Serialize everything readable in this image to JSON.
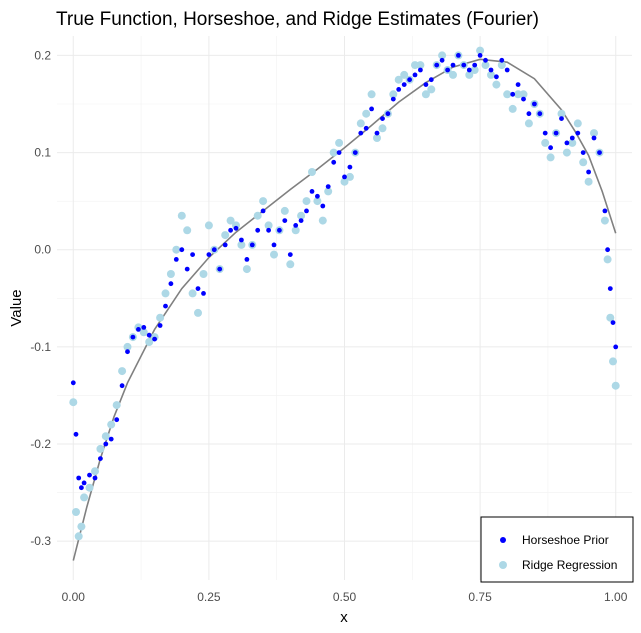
{
  "chart_data": {
    "type": "scatter",
    "title": "True Function, Horseshoe, and Ridge Estimates (Fourier)",
    "xlabel": "x",
    "ylabel": "Value",
    "xlim": [
      -0.03,
      1.03
    ],
    "ylim": [
      -0.34,
      0.22
    ],
    "x_ticks": [
      0.0,
      0.25,
      0.5,
      0.75,
      1.0
    ],
    "x_tick_labels": [
      "0.00",
      "0.25",
      "0.50",
      "0.75",
      "1.00"
    ],
    "y_ticks": [
      -0.3,
      -0.2,
      -0.1,
      0.0,
      0.1,
      0.2
    ],
    "y_tick_labels": [
      "-0.3",
      "-0.2",
      "-0.1",
      "0.0",
      "0.1",
      "0.2"
    ],
    "grid": true,
    "legend_position": "bottom-right",
    "true_function": {
      "color": "#808080",
      "x": [
        0.0,
        0.025,
        0.05,
        0.075,
        0.1,
        0.15,
        0.2,
        0.25,
        0.3,
        0.35,
        0.4,
        0.45,
        0.5,
        0.55,
        0.6,
        0.65,
        0.7,
        0.75,
        0.8,
        0.85,
        0.9,
        0.925,
        0.95,
        0.975,
        1.0
      ],
      "y": [
        -0.32,
        -0.265,
        -0.215,
        -0.172,
        -0.137,
        -0.082,
        -0.04,
        -0.008,
        0.018,
        0.04,
        0.062,
        0.083,
        0.105,
        0.128,
        0.152,
        0.172,
        0.188,
        0.196,
        0.193,
        0.176,
        0.144,
        0.122,
        0.097,
        0.06,
        0.017
      ]
    },
    "series": [
      {
        "name": "Horseshoe Prior",
        "color": "#0000ff",
        "x": [
          0.0,
          0.005,
          0.01,
          0.015,
          0.02,
          0.03,
          0.04,
          0.05,
          0.06,
          0.07,
          0.08,
          0.09,
          0.1,
          0.11,
          0.12,
          0.13,
          0.14,
          0.15,
          0.16,
          0.17,
          0.18,
          0.19,
          0.2,
          0.21,
          0.22,
          0.23,
          0.24,
          0.25,
          0.26,
          0.27,
          0.28,
          0.29,
          0.3,
          0.31,
          0.32,
          0.33,
          0.34,
          0.35,
          0.36,
          0.37,
          0.38,
          0.39,
          0.4,
          0.41,
          0.42,
          0.43,
          0.44,
          0.45,
          0.46,
          0.47,
          0.48,
          0.49,
          0.5,
          0.51,
          0.52,
          0.53,
          0.54,
          0.55,
          0.56,
          0.57,
          0.58,
          0.59,
          0.6,
          0.61,
          0.62,
          0.63,
          0.64,
          0.65,
          0.66,
          0.67,
          0.68,
          0.69,
          0.7,
          0.71,
          0.72,
          0.73,
          0.74,
          0.75,
          0.76,
          0.77,
          0.78,
          0.79,
          0.8,
          0.81,
          0.82,
          0.83,
          0.84,
          0.85,
          0.86,
          0.87,
          0.88,
          0.89,
          0.9,
          0.91,
          0.92,
          0.93,
          0.94,
          0.95,
          0.96,
          0.97,
          0.98,
          0.985,
          0.99,
          0.995,
          1.0
        ],
        "y": [
          -0.137,
          -0.19,
          -0.235,
          -0.245,
          -0.24,
          -0.232,
          -0.235,
          -0.215,
          -0.2,
          -0.195,
          -0.175,
          -0.14,
          -0.105,
          -0.09,
          -0.082,
          -0.08,
          -0.088,
          -0.092,
          -0.078,
          -0.058,
          -0.035,
          -0.01,
          0.0,
          -0.02,
          -0.005,
          -0.04,
          -0.045,
          -0.005,
          0.0,
          -0.02,
          0.005,
          0.02,
          0.022,
          0.01,
          -0.01,
          0.005,
          0.02,
          0.04,
          0.02,
          0.005,
          0.02,
          0.03,
          -0.005,
          0.025,
          0.03,
          0.04,
          0.06,
          0.055,
          0.045,
          0.065,
          0.09,
          0.1,
          0.075,
          0.085,
          0.1,
          0.12,
          0.125,
          0.145,
          0.12,
          0.135,
          0.14,
          0.155,
          0.165,
          0.17,
          0.175,
          0.18,
          0.185,
          0.17,
          0.175,
          0.19,
          0.195,
          0.185,
          0.19,
          0.2,
          0.19,
          0.185,
          0.19,
          0.2,
          0.195,
          0.185,
          0.178,
          0.195,
          0.185,
          0.16,
          0.17,
          0.155,
          0.14,
          0.15,
          0.14,
          0.12,
          0.105,
          0.12,
          0.135,
          0.11,
          0.115,
          0.12,
          0.1,
          0.08,
          0.115,
          0.1,
          0.04,
          0.0,
          -0.04,
          -0.075,
          -0.1
        ]
      },
      {
        "name": "Ridge Regression",
        "color": "#add8e6",
        "x": [
          0.0,
          0.005,
          0.01,
          0.015,
          0.02,
          0.03,
          0.04,
          0.05,
          0.06,
          0.07,
          0.08,
          0.09,
          0.1,
          0.11,
          0.12,
          0.13,
          0.14,
          0.15,
          0.16,
          0.17,
          0.18,
          0.19,
          0.2,
          0.21,
          0.22,
          0.23,
          0.24,
          0.25,
          0.26,
          0.27,
          0.28,
          0.29,
          0.3,
          0.31,
          0.32,
          0.33,
          0.34,
          0.35,
          0.36,
          0.37,
          0.38,
          0.39,
          0.4,
          0.41,
          0.42,
          0.43,
          0.44,
          0.45,
          0.46,
          0.47,
          0.48,
          0.49,
          0.5,
          0.51,
          0.52,
          0.53,
          0.54,
          0.55,
          0.56,
          0.57,
          0.58,
          0.59,
          0.6,
          0.61,
          0.62,
          0.63,
          0.64,
          0.65,
          0.66,
          0.67,
          0.68,
          0.69,
          0.7,
          0.71,
          0.72,
          0.73,
          0.74,
          0.75,
          0.76,
          0.77,
          0.78,
          0.79,
          0.8,
          0.81,
          0.82,
          0.83,
          0.84,
          0.85,
          0.86,
          0.87,
          0.88,
          0.89,
          0.9,
          0.91,
          0.92,
          0.93,
          0.94,
          0.95,
          0.96,
          0.97,
          0.98,
          0.985,
          0.99,
          0.995,
          1.0
        ],
        "y": [
          -0.157,
          -0.27,
          -0.295,
          -0.285,
          -0.255,
          -0.245,
          -0.228,
          -0.205,
          -0.192,
          -0.18,
          -0.16,
          -0.125,
          -0.1,
          -0.09,
          -0.08,
          -0.085,
          -0.095,
          -0.09,
          -0.07,
          -0.045,
          -0.025,
          0.0,
          0.035,
          0.02,
          -0.045,
          -0.065,
          -0.025,
          0.025,
          0.0,
          -0.02,
          0.015,
          0.03,
          0.025,
          0.005,
          -0.02,
          0.005,
          0.035,
          0.05,
          0.025,
          -0.005,
          0.02,
          0.04,
          -0.015,
          0.02,
          0.035,
          0.05,
          0.08,
          0.05,
          0.03,
          0.06,
          0.1,
          0.11,
          0.07,
          0.075,
          0.1,
          0.13,
          0.14,
          0.16,
          0.115,
          0.125,
          0.14,
          0.16,
          0.175,
          0.18,
          0.175,
          0.19,
          0.19,
          0.16,
          0.165,
          0.19,
          0.2,
          0.185,
          0.18,
          0.2,
          0.19,
          0.18,
          0.185,
          0.205,
          0.19,
          0.18,
          0.17,
          0.19,
          0.16,
          0.145,
          0.16,
          0.16,
          0.13,
          0.15,
          0.14,
          0.11,
          0.095,
          0.12,
          0.14,
          0.1,
          0.11,
          0.13,
          0.09,
          0.07,
          0.12,
          0.1,
          0.03,
          -0.01,
          -0.07,
          -0.115,
          -0.14
        ]
      }
    ]
  }
}
